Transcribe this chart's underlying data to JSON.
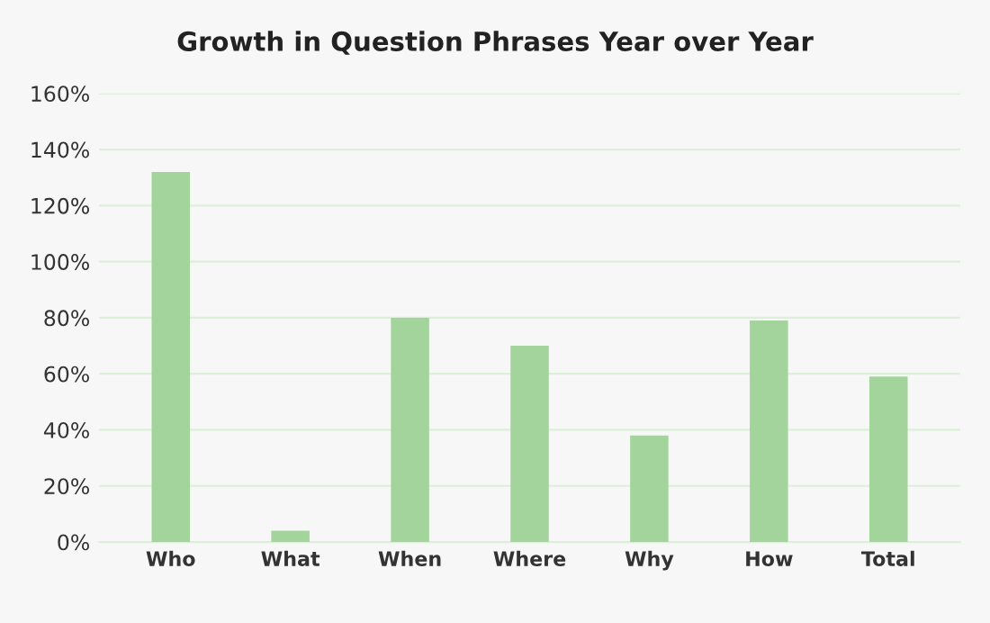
{
  "chart_data": {
    "type": "bar",
    "title": "Growth in Question Phrases Year over Year",
    "categories": [
      "Who",
      "What",
      "When",
      "Where",
      "Why",
      "How",
      "Total"
    ],
    "values": [
      132,
      4,
      80,
      70,
      38,
      79,
      59
    ],
    "color": "#a3d49b",
    "ylim": [
      0,
      160
    ],
    "yticks": [
      {
        "value": 0,
        "label": "0%"
      },
      {
        "value": 20,
        "label": "20%"
      },
      {
        "value": 40,
        "label": "40%"
      },
      {
        "value": 60,
        "label": "60%"
      },
      {
        "value": 80,
        "label": "80%"
      },
      {
        "value": 100,
        "label": "100%"
      },
      {
        "value": 120,
        "label": "120%"
      },
      {
        "value": 140,
        "label": "140%"
      },
      {
        "value": 160,
        "label": "160%"
      }
    ],
    "grid": "y"
  }
}
